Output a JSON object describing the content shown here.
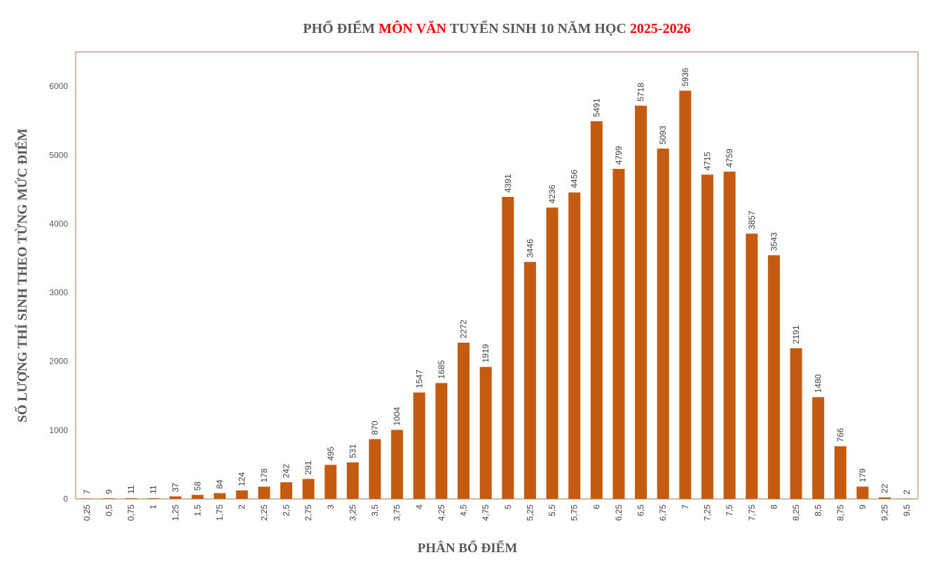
{
  "chart_data": {
    "type": "bar",
    "title_parts": [
      {
        "text": "PHỔ ĐIỂM ",
        "color": "#595959"
      },
      {
        "text": "MÔN VĂN",
        "color": "#ff0000"
      },
      {
        "text": " TUYỂN SINH 10 NĂM HỌC ",
        "color": "#595959"
      },
      {
        "text": "2025-2026",
        "color": "#ff0000"
      }
    ],
    "xlabel": "PHÂN BỔ ĐIỂM",
    "ylabel": "SỐ LƯỢNG THÍ SINH THEO TỪNG MỨC ĐIỂM",
    "ylim": [
      0,
      6500
    ],
    "yticks": [
      0,
      1000,
      2000,
      3000,
      4000,
      5000,
      6000
    ],
    "bar_color": "#c55a11",
    "frame_color": "#b98a68",
    "grid": false,
    "categories": [
      "0,25",
      "0,5",
      "0,75",
      "1",
      "1,25",
      "1,5",
      "1,75",
      "2",
      "2,25",
      "2,5",
      "2,75",
      "3",
      "3,25",
      "3,5",
      "3,75",
      "4",
      "4,25",
      "4,5",
      "4,75",
      "5",
      "5,25",
      "5,5",
      "5,75",
      "6",
      "6,25",
      "6,5",
      "6,75",
      "7",
      "7,25",
      "7,5",
      "7,75",
      "8",
      "8,25",
      "8,5",
      "8,75",
      "9",
      "9,25",
      "9,5"
    ],
    "values": [
      7,
      9,
      11,
      11,
      37,
      58,
      84,
      124,
      178,
      242,
      291,
      495,
      531,
      870,
      1004,
      1547,
      1685,
      2272,
      1919,
      4391,
      3446,
      4236,
      4456,
      5491,
      4799,
      5718,
      5093,
      5936,
      4715,
      4759,
      3857,
      3543,
      2191,
      1480,
      766,
      179,
      22,
      2
    ]
  }
}
